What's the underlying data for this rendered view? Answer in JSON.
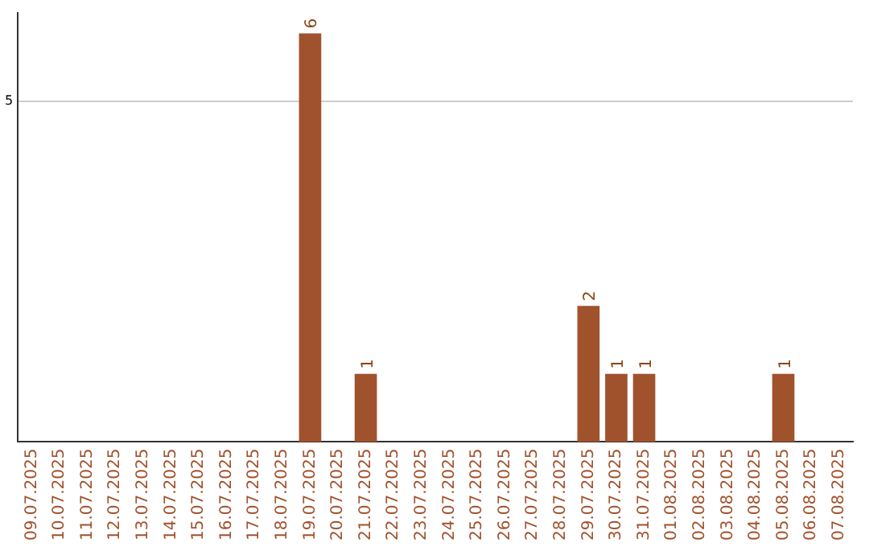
{
  "chart_data": {
    "type": "bar",
    "categories": [
      "09.07.2025",
      "10.07.2025",
      "11.07.2025",
      "12.07.2025",
      "13.07.2025",
      "14.07.2025",
      "15.07.2025",
      "16.07.2025",
      "17.07.2025",
      "18.07.2025",
      "19.07.2025",
      "20.07.2025",
      "21.07.2025",
      "22.07.2025",
      "23.07.2025",
      "24.07.2025",
      "25.07.2025",
      "26.07.2025",
      "27.07.2025",
      "28.07.2025",
      "29.07.2025",
      "30.07.2025",
      "31.07.2025",
      "01.08.2025",
      "02.08.2025",
      "03.08.2025",
      "04.08.2025",
      "05.08.2025",
      "06.08.2025",
      "07.08.2025"
    ],
    "values": [
      0,
      0,
      0,
      0,
      0,
      0,
      0,
      0,
      0,
      0,
      6,
      0,
      1,
      0,
      0,
      0,
      0,
      0,
      0,
      0,
      2,
      1,
      1,
      0,
      0,
      0,
      0,
      1,
      0,
      0
    ],
    "value_labels": [
      null,
      null,
      null,
      null,
      null,
      null,
      null,
      null,
      null,
      null,
      "6",
      null,
      "1",
      null,
      null,
      null,
      null,
      null,
      null,
      null,
      "2",
      "1",
      "1",
      null,
      null,
      null,
      null,
      "1",
      null,
      null
    ],
    "color": "#a0522d",
    "ylim": [
      0,
      6.3
    ],
    "yticks": [
      5
    ],
    "grid": "y"
  }
}
